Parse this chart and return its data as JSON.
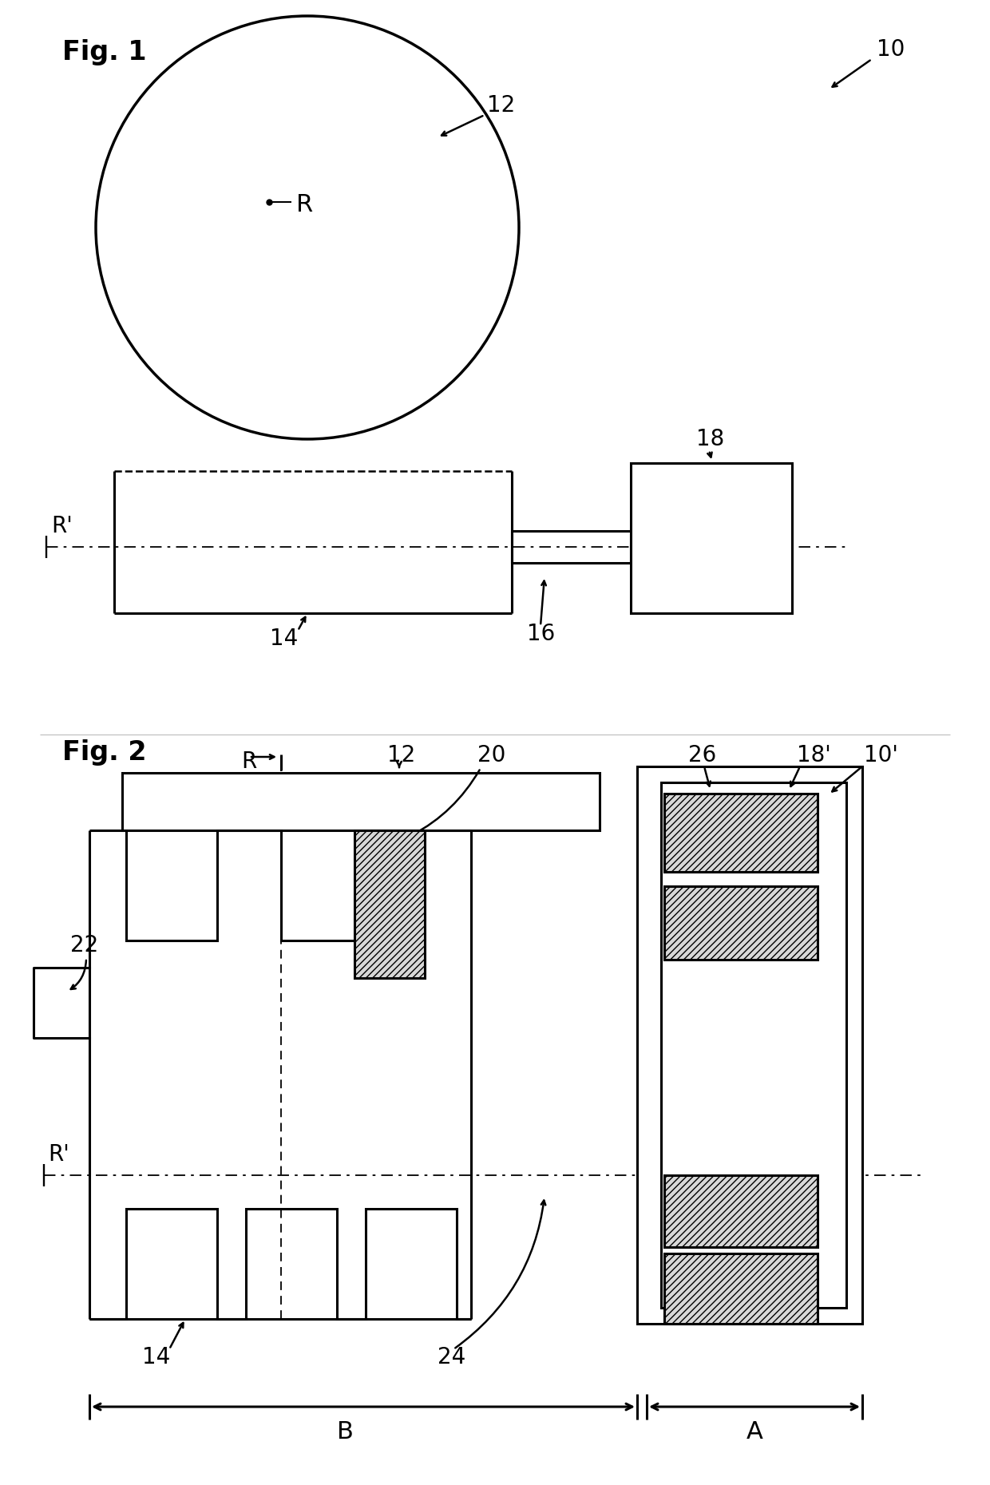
{
  "fig1_label": "Fig. 1",
  "fig2_label": "Fig. 2",
  "label_10": "10",
  "label_10p": "10'",
  "label_12": "12",
  "label_14": "14",
  "label_16": "16",
  "label_18": "18",
  "label_18p": "18'",
  "label_20": "20",
  "label_22": "22",
  "label_24": "24",
  "label_26": "26",
  "label_R": "R",
  "label_Rp": "R'",
  "label_A": "A",
  "label_B": "B",
  "line_color": "#000000",
  "bg_color": "#ffffff",
  "lw": 2.2,
  "thin_lw": 1.3
}
